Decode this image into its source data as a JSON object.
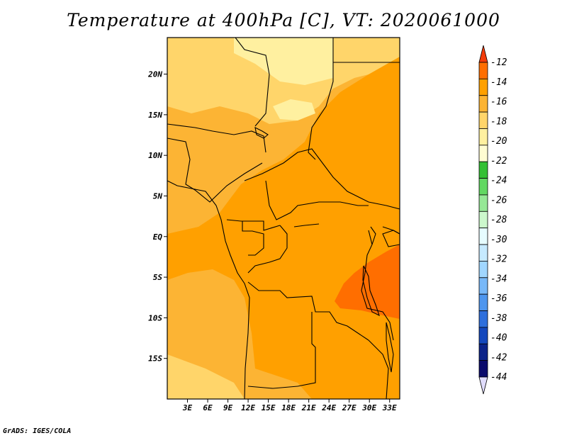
{
  "map": {
    "title": "Temperature at 400hPa [C], VT: 2020061000",
    "credit": "GrADS: IGES/COLA",
    "lat_labels": [
      "20N",
      "15N",
      "10N",
      "5N",
      "EQ",
      "5S",
      "10S",
      "15S"
    ],
    "lon_labels": [
      "3E",
      "6E",
      "9E",
      "12E",
      "15E",
      "18E",
      "21E",
      "24E",
      "27E",
      "30E",
      "33E"
    ],
    "extent": {
      "lon_min": 0,
      "lon_max": 34.5,
      "lat_min": -20,
      "lat_max": 24.5
    }
  },
  "legend": {
    "labels": [
      "-12",
      "-14",
      "-16",
      "-18",
      "-20",
      "-22",
      "-24",
      "-26",
      "-28",
      "-30",
      "-32",
      "-34",
      "-36",
      "-38",
      "-40",
      "-42",
      "-44"
    ],
    "colors": [
      "#f43c0a",
      "#ff6e00",
      "#ffa000",
      "#fcb434",
      "#ffd56a",
      "#fff0a0",
      "#fffcd2",
      "#34c034",
      "#62d862",
      "#96e896",
      "#ccf8cc",
      "#e6fcff",
      "#c6eaff",
      "#a0d6ff",
      "#78b8f8",
      "#4f96ee",
      "#2e6fdc",
      "#1448bd",
      "#0b2389",
      "#0a0a6b",
      "#e0dcfc"
    ]
  }
}
